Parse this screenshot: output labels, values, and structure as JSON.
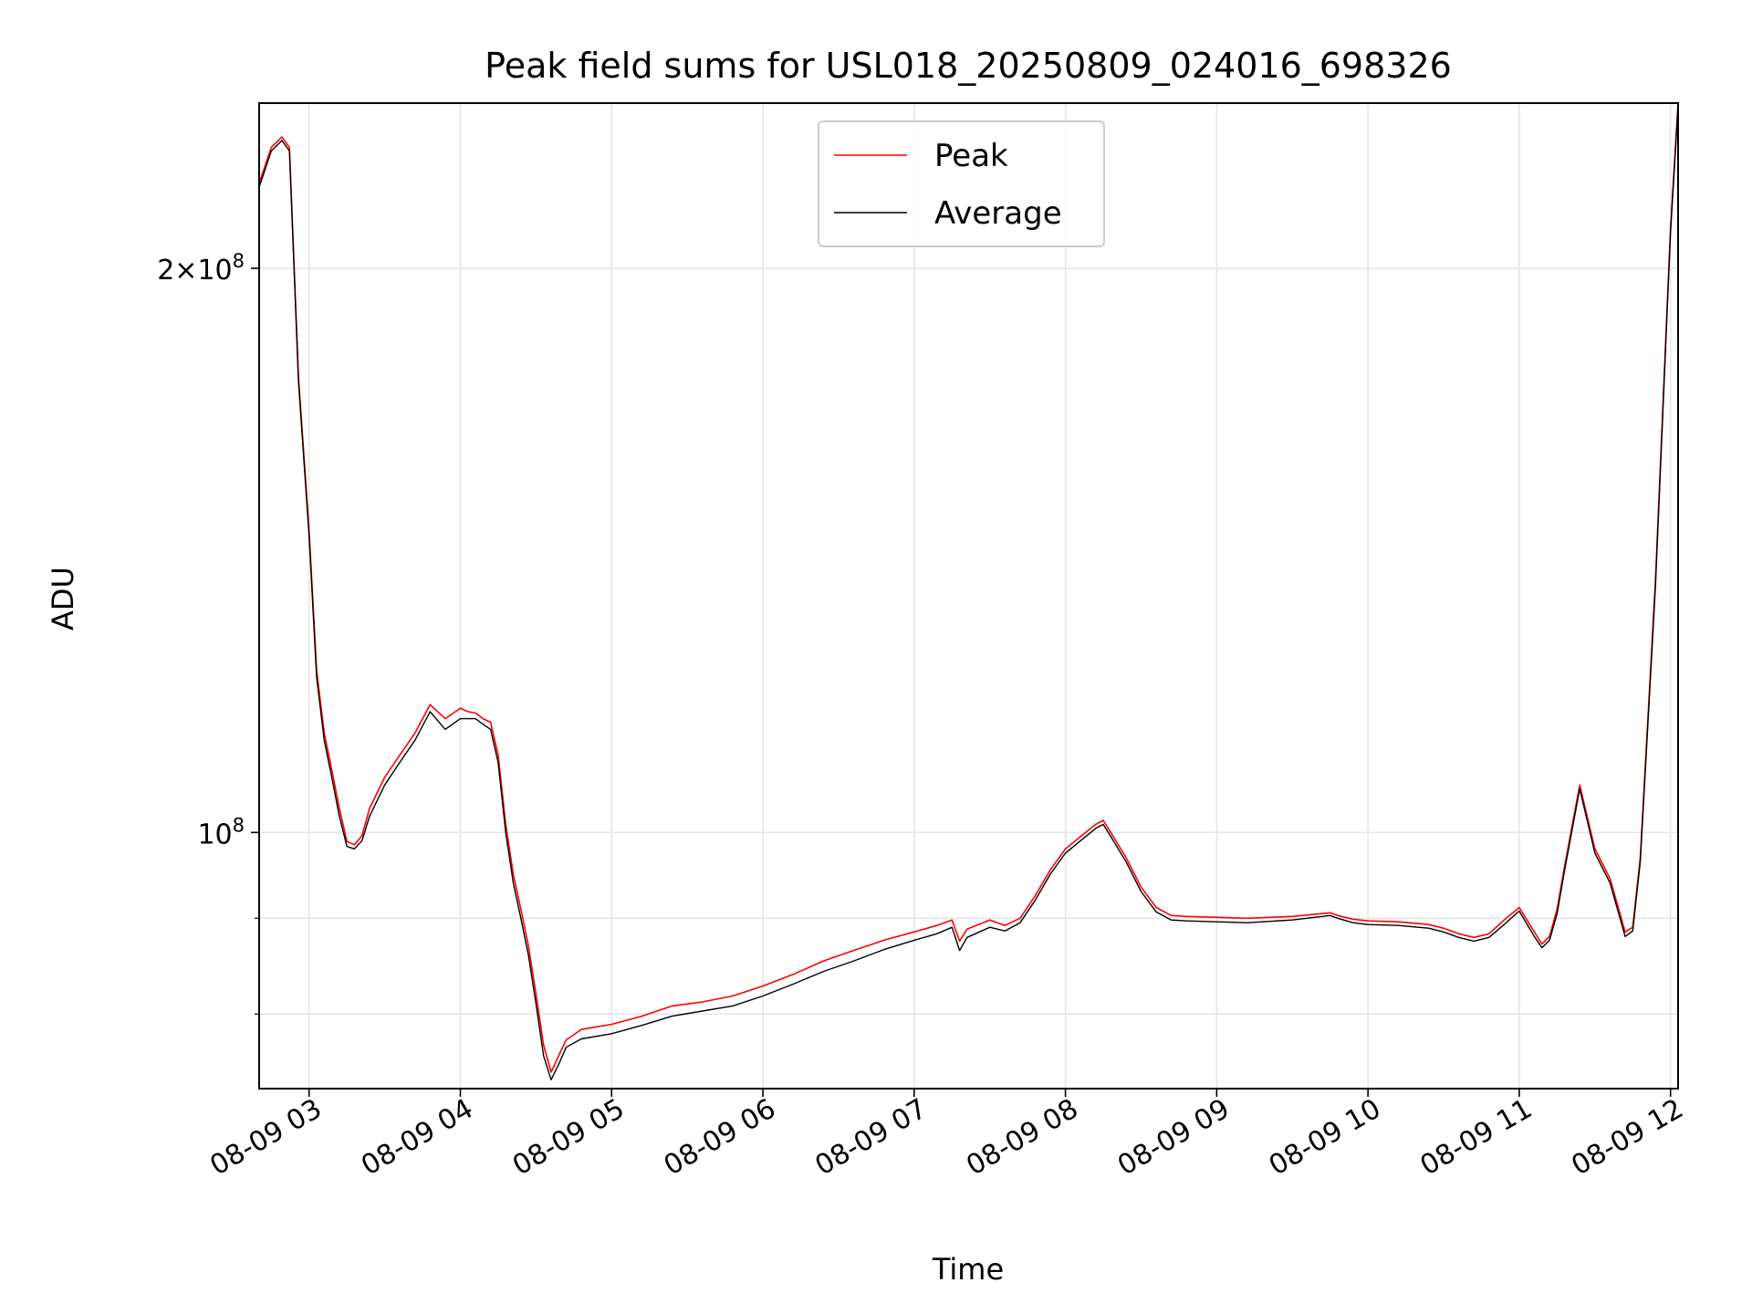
{
  "chart_data": {
    "type": "line",
    "title": "Peak field sums for USL018_20250809_024016_698326",
    "xlabel": "Time",
    "ylabel": "ADU",
    "yscale": "log",
    "xlim": [
      2.67,
      12.05
    ],
    "ylim": [
      73000000,
      245000000
    ],
    "grid": true,
    "legend_position": "top-center",
    "x_ticks": [
      {
        "value": 3,
        "label": "08-09 03"
      },
      {
        "value": 4,
        "label": "08-09 04"
      },
      {
        "value": 5,
        "label": "08-09 05"
      },
      {
        "value": 6,
        "label": "08-09 06"
      },
      {
        "value": 7,
        "label": "08-09 07"
      },
      {
        "value": 8,
        "label": "08-09 08"
      },
      {
        "value": 9,
        "label": "08-09 09"
      },
      {
        "value": 10,
        "label": "08-09 10"
      },
      {
        "value": 11,
        "label": "08-09 11"
      },
      {
        "value": 12,
        "label": "08-09 12"
      }
    ],
    "y_major_ticks": [
      {
        "value": 200000000,
        "mantissa": "2",
        "exp": "8"
      },
      {
        "value": 100000000,
        "mantissa": "",
        "exp": "8"
      }
    ],
    "y_minor_ticks": [
      90000000,
      80000000
    ],
    "series": [
      {
        "name": "Peak",
        "color": "#ff0000",
        "x": [
          2.67,
          2.75,
          2.82,
          2.87,
          2.93,
          3.0,
          3.05,
          3.1,
          3.15,
          3.2,
          3.25,
          3.3,
          3.35,
          3.4,
          3.5,
          3.6,
          3.7,
          3.8,
          3.9,
          4.0,
          4.05,
          4.1,
          4.15,
          4.2,
          4.25,
          4.3,
          4.35,
          4.4,
          4.45,
          4.5,
          4.55,
          4.6,
          4.65,
          4.7,
          4.8,
          5.0,
          5.2,
          5.4,
          5.6,
          5.8,
          6.0,
          6.2,
          6.4,
          6.6,
          6.8,
          7.0,
          7.15,
          7.25,
          7.3,
          7.35,
          7.5,
          7.6,
          7.7,
          7.8,
          7.9,
          8.0,
          8.1,
          8.2,
          8.25,
          8.3,
          8.4,
          8.5,
          8.6,
          8.7,
          8.8,
          9.0,
          9.2,
          9.5,
          9.75,
          9.8,
          9.9,
          10.0,
          10.2,
          10.4,
          10.5,
          10.6,
          10.7,
          10.8,
          10.9,
          11.0,
          11.1,
          11.15,
          11.2,
          11.25,
          11.3,
          11.4,
          11.5,
          11.6,
          11.7,
          11.75,
          11.8,
          11.9,
          12.0,
          12.05
        ],
        "y": [
          222000000,
          232000000,
          235000000,
          232000000,
          175000000,
          145000000,
          122000000,
          113000000,
          108000000,
          103000000,
          98900000,
          98500000,
          99600000,
          103000000,
          107000000,
          110000000,
          113000000,
          117000000,
          115000000,
          116500000,
          116000000,
          115800000,
          115000000,
          114500000,
          110000000,
          101000000,
          95000000,
          91000000,
          87000000,
          82000000,
          77000000,
          74500000,
          76000000,
          77500000,
          78500000,
          79000000,
          79800000,
          80800000,
          81200000,
          81800000,
          82800000,
          84000000,
          85400000,
          86500000,
          87600000,
          88500000,
          89200000,
          89800000,
          87500000,
          88800000,
          89800000,
          89200000,
          90000000,
          92500000,
          95500000,
          98000000,
          99500000,
          101000000,
          101500000,
          100000000,
          97000000,
          93500000,
          91200000,
          90300000,
          90200000,
          90100000,
          90000000,
          90200000,
          90600000,
          90300000,
          89900000,
          89700000,
          89600000,
          89300000,
          88900000,
          88300000,
          87900000,
          88300000,
          89800000,
          91200000,
          88500000,
          87200000,
          88000000,
          91000000,
          96000000,
          106000000,
          98000000,
          94500000,
          88500000,
          89000000,
          97000000,
          136000000,
          210000000,
          245000000
        ]
      },
      {
        "name": "Average",
        "color": "#000000",
        "x": [
          2.67,
          2.75,
          2.82,
          2.87,
          2.93,
          3.0,
          3.05,
          3.1,
          3.15,
          3.2,
          3.25,
          3.3,
          3.35,
          3.4,
          3.5,
          3.6,
          3.7,
          3.8,
          3.9,
          4.0,
          4.05,
          4.1,
          4.15,
          4.2,
          4.25,
          4.3,
          4.35,
          4.4,
          4.45,
          4.5,
          4.55,
          4.6,
          4.65,
          4.7,
          4.8,
          5.0,
          5.2,
          5.4,
          5.6,
          5.8,
          6.0,
          6.2,
          6.4,
          6.6,
          6.8,
          7.0,
          7.15,
          7.25,
          7.3,
          7.35,
          7.5,
          7.6,
          7.7,
          7.8,
          7.9,
          8.0,
          8.1,
          8.2,
          8.25,
          8.3,
          8.4,
          8.5,
          8.6,
          8.7,
          8.8,
          9.0,
          9.2,
          9.5,
          9.75,
          9.8,
          9.9,
          10.0,
          10.2,
          10.4,
          10.5,
          10.6,
          10.7,
          10.8,
          10.9,
          11.0,
          11.1,
          11.15,
          11.2,
          11.25,
          11.3,
          11.4,
          11.5,
          11.6,
          11.7,
          11.75,
          11.8,
          11.9,
          12.0,
          12.05
        ],
        "y": [
          221000000,
          231000000,
          234000000,
          231000000,
          174000000,
          144000000,
          121000000,
          112000000,
          107000000,
          102000000,
          98300000,
          98000000,
          99000000,
          102000000,
          106000000,
          109000000,
          112000000,
          116000000,
          113500000,
          115000000,
          115000000,
          115000000,
          114200000,
          113500000,
          109000000,
          100000000,
          94000000,
          90000000,
          86000000,
          81000000,
          76000000,
          73800000,
          75200000,
          76800000,
          77600000,
          78100000,
          78900000,
          79800000,
          80300000,
          80800000,
          81800000,
          83000000,
          84300000,
          85400000,
          86600000,
          87600000,
          88300000,
          89000000,
          86500000,
          87900000,
          89000000,
          88600000,
          89500000,
          92000000,
          95000000,
          97500000,
          99000000,
          100500000,
          101000000,
          99500000,
          96500000,
          93000000,
          90700000,
          89800000,
          89700000,
          89600000,
          89500000,
          89800000,
          90300000,
          90000000,
          89500000,
          89300000,
          89200000,
          88900000,
          88500000,
          87900000,
          87500000,
          87900000,
          89300000,
          90800000,
          88000000,
          86800000,
          87600000,
          90500000,
          95500000,
          105500000,
          97500000,
          94000000,
          88000000,
          88600000,
          96500000,
          135000000,
          209000000,
          244000000
        ]
      }
    ]
  }
}
